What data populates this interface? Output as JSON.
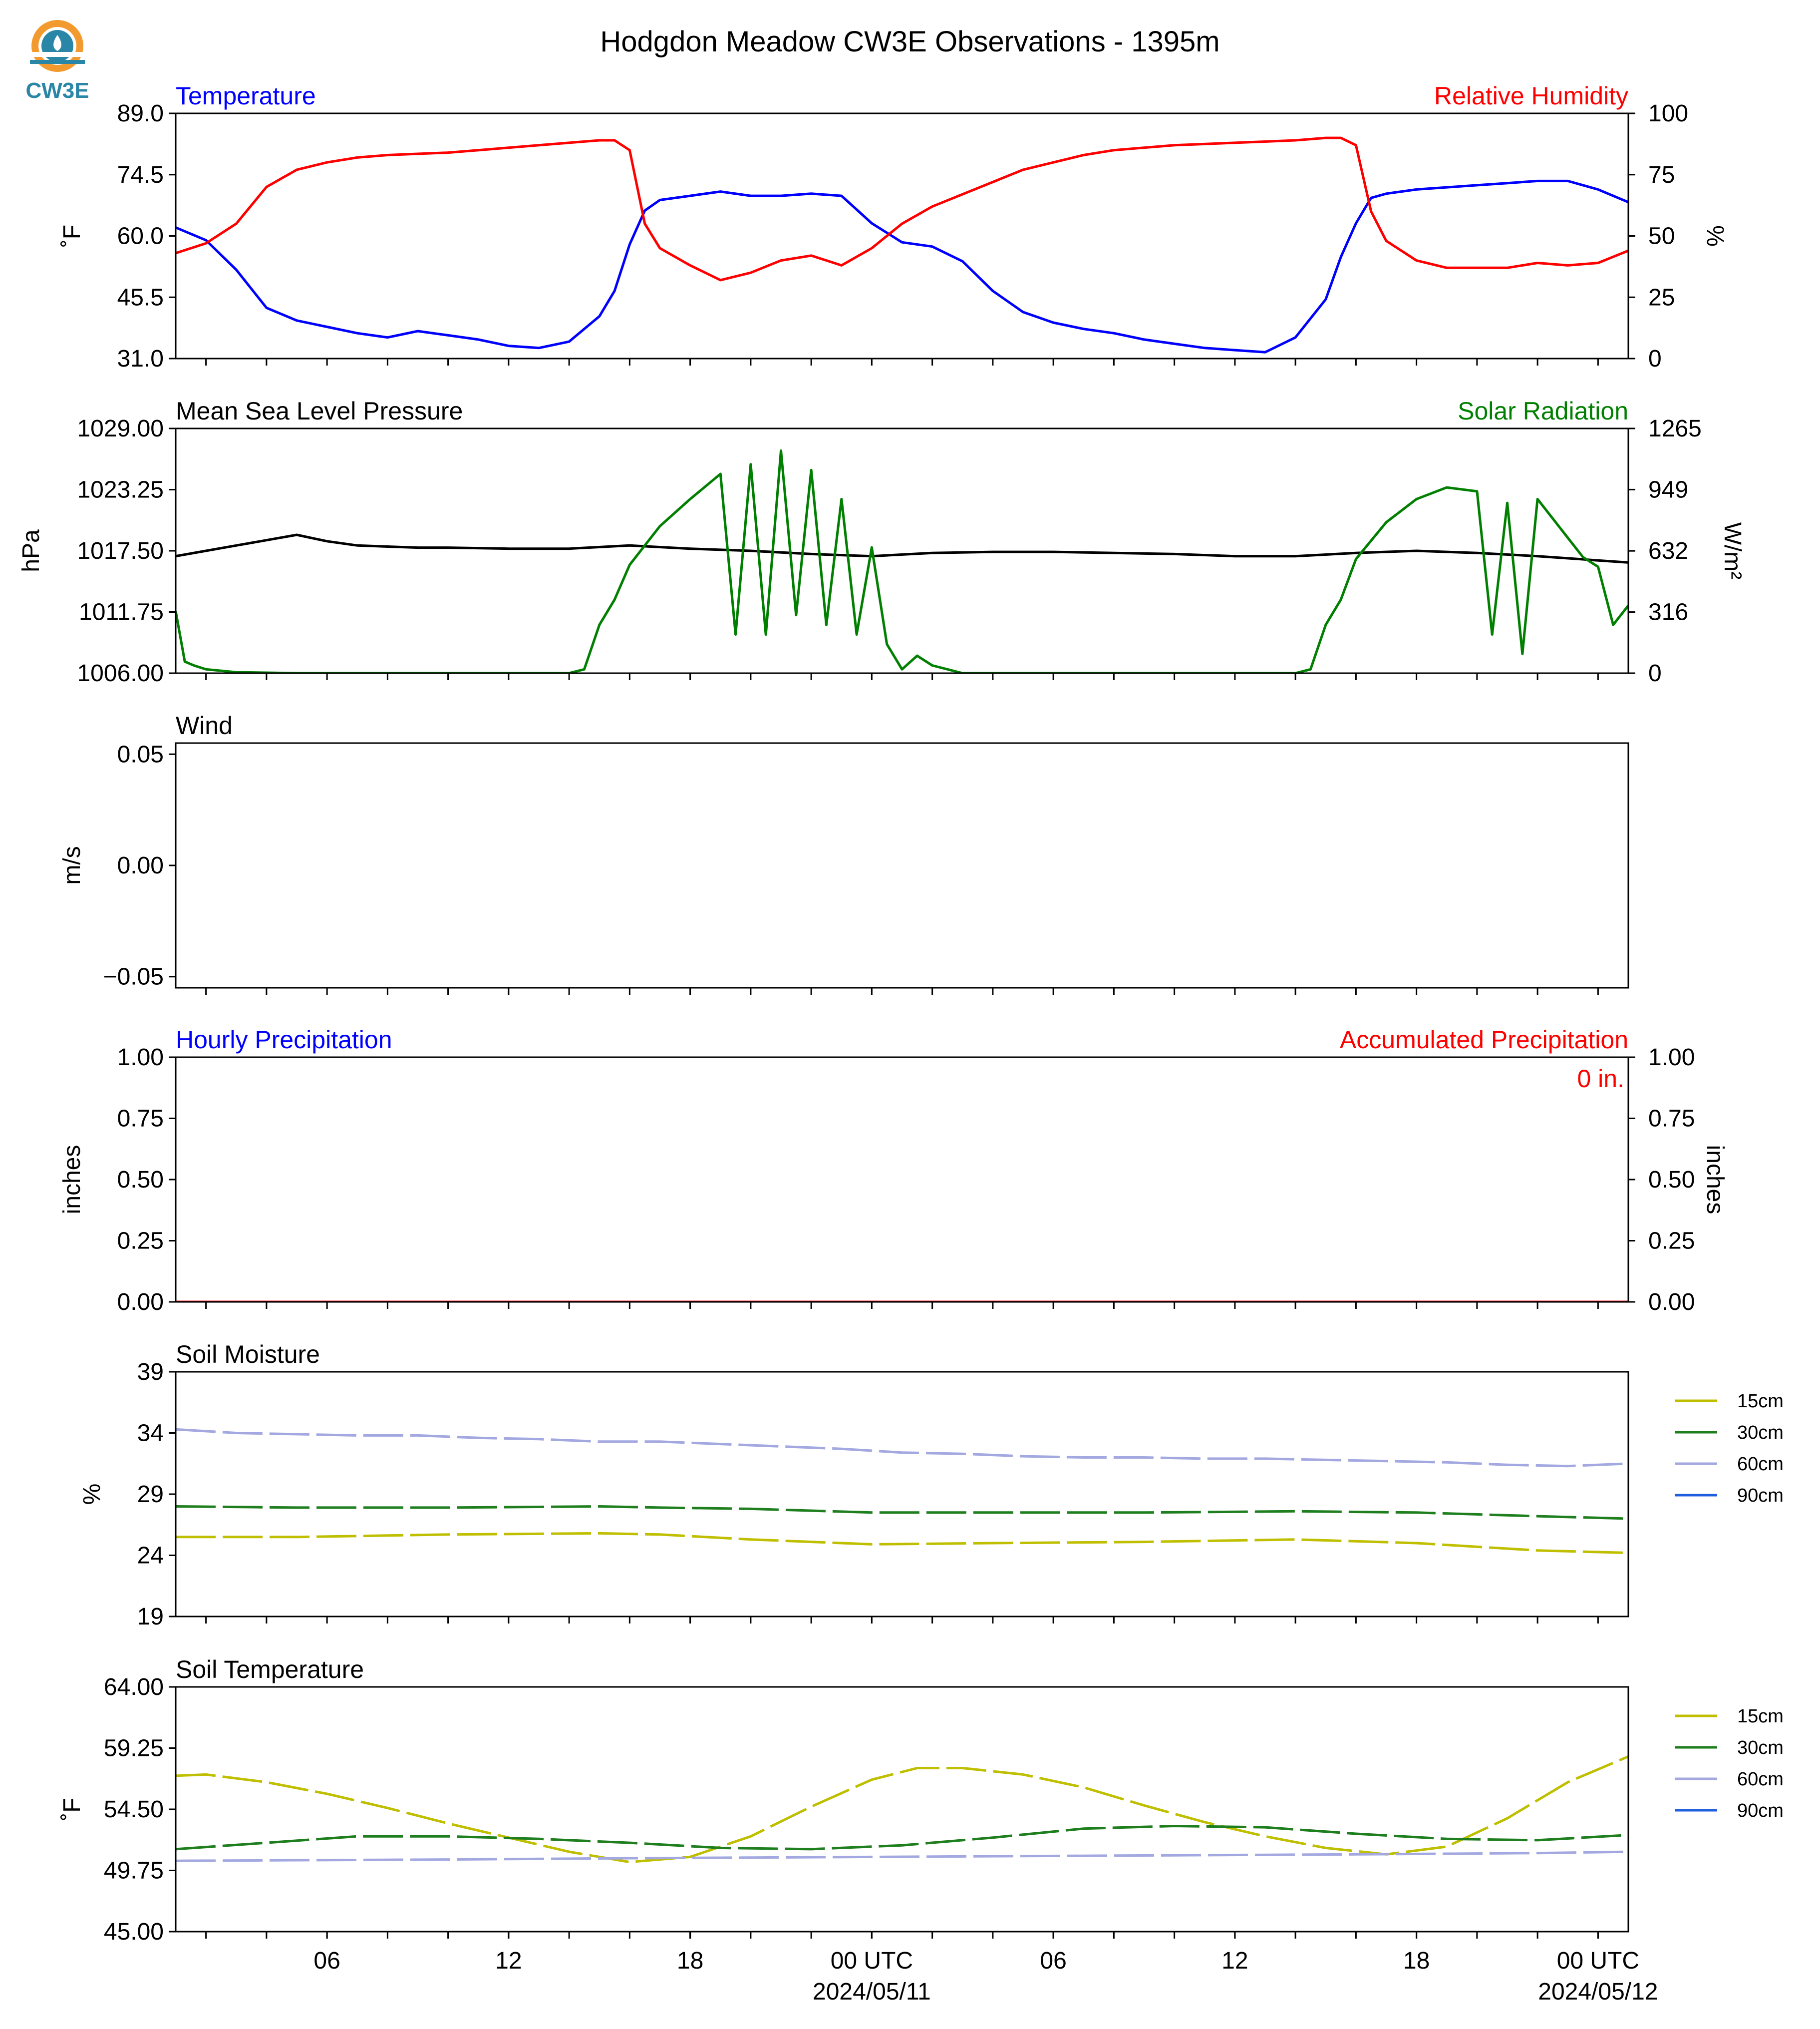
{
  "title": "Hodgdon Meadow CW3E Observations - 1395m",
  "logo": {
    "text": "CW3E",
    "icon": "cw3e-logo-icon"
  },
  "colors": {
    "blue": "#0000ff",
    "red": "#ff0000",
    "green": "#007f00",
    "black": "#000000",
    "s15": "#bfbf00",
    "s30": "#1f7f1f",
    "s60": "#a3a8e0",
    "s90": "#1f5fdf"
  },
  "x_axis": {
    "ticks": [
      {
        "h": 6,
        "label": "06",
        "sub": ""
      },
      {
        "h": 12,
        "label": "12",
        "sub": ""
      },
      {
        "h": 18,
        "label": "18",
        "sub": ""
      },
      {
        "h": 24,
        "label": "00 UTC",
        "sub": "2024/05/11"
      },
      {
        "h": 30,
        "label": "06",
        "sub": ""
      },
      {
        "h": 36,
        "label": "12",
        "sub": ""
      },
      {
        "h": 42,
        "label": "18",
        "sub": ""
      },
      {
        "h": 48,
        "label": "00 UTC",
        "sub": "2024/05/12"
      }
    ],
    "range_hours": [
      1,
      49
    ]
  },
  "chart_data": [
    {
      "type": "line",
      "title_left": "Temperature",
      "title_right": "Relative Humidity",
      "ylabel_left": "˚F",
      "ylabel_right": "%",
      "ylim_left": [
        31.0,
        89.0
      ],
      "yticks_left": [
        "31.0",
        "45.5",
        "60.0",
        "74.5",
        "89.0"
      ],
      "ylim_right": [
        0,
        100
      ],
      "yticks_right": [
        "0",
        "25",
        "50",
        "75",
        "100"
      ],
      "series": [
        {
          "name": "Temperature",
          "axis": "left",
          "color": "blue",
          "x": [
            1,
            2,
            3,
            4,
            5,
            6,
            7,
            8,
            9,
            10,
            11,
            12,
            13,
            14,
            15,
            15.5,
            16,
            16.5,
            17,
            18,
            19,
            20,
            21,
            22,
            23,
            24,
            25,
            26,
            27,
            28,
            29,
            30,
            31,
            32,
            33,
            34,
            35,
            36,
            37,
            38,
            39,
            39.5,
            40,
            40.5,
            41,
            42,
            43,
            44,
            45,
            46,
            47,
            48,
            49
          ],
          "y": [
            62,
            59,
            52,
            43,
            40,
            38.5,
            37,
            36,
            37.5,
            36.5,
            35.5,
            34,
            33.5,
            35,
            41,
            47,
            58,
            66,
            68.5,
            69.5,
            70.5,
            69.5,
            69.5,
            70,
            69.5,
            63,
            58.5,
            57.5,
            54,
            47,
            42,
            39.5,
            38,
            37,
            35.5,
            34.5,
            33.5,
            33,
            32.5,
            36,
            45,
            55,
            63,
            69,
            70,
            71,
            71.5,
            72,
            72.5,
            73,
            73,
            71,
            68
          ]
        },
        {
          "name": "Relative Humidity",
          "axis": "right",
          "color": "red",
          "x": [
            1,
            2,
            3,
            4,
            5,
            6,
            7,
            8,
            9,
            10,
            11,
            12,
            13,
            14,
            15,
            15.5,
            16,
            16.5,
            17,
            18,
            19,
            20,
            21,
            22,
            23,
            24,
            25,
            26,
            27,
            28,
            29,
            30,
            31,
            32,
            33,
            34,
            35,
            36,
            37,
            38,
            39,
            39.5,
            40,
            40.5,
            41,
            42,
            43,
            44,
            45,
            46,
            47,
            48,
            49
          ],
          "y": [
            43,
            47,
            55,
            70,
            77,
            80,
            82,
            83,
            83.5,
            84,
            85,
            86,
            87,
            88,
            89,
            89,
            85,
            55,
            45,
            38,
            32,
            35,
            40,
            42,
            38,
            45,
            55,
            62,
            67,
            72,
            77,
            80,
            83,
            85,
            86,
            87,
            87.5,
            88,
            88.5,
            89,
            90,
            90,
            87,
            60,
            48,
            40,
            37,
            37,
            37,
            39,
            38,
            39,
            44
          ]
        }
      ]
    },
    {
      "type": "line",
      "title_left": "Mean Sea Level Pressure",
      "title_right": "Solar Radiation",
      "ylabel_left": "hPa",
      "ylabel_right": "W/m²",
      "ylim_left": [
        1006.0,
        1029.0
      ],
      "yticks_left": [
        "1006.00",
        "1011.75",
        "1017.50",
        "1023.25",
        "1029.00"
      ],
      "ylim_right": [
        0,
        1265
      ],
      "yticks_right": [
        "0",
        "316",
        "632",
        "949",
        "1265"
      ],
      "series": [
        {
          "name": "Mean Sea Level Pressure",
          "axis": "left",
          "color": "black",
          "x": [
            1,
            2,
            3,
            4,
            5,
            6,
            7,
            8,
            9,
            10,
            12,
            14,
            16,
            18,
            20,
            22,
            24,
            26,
            28,
            30,
            32,
            34,
            36,
            38,
            40,
            42,
            44,
            46,
            48,
            49
          ],
          "y": [
            1017.0,
            1017.5,
            1018.0,
            1018.5,
            1019.0,
            1018.4,
            1018.0,
            1017.9,
            1017.8,
            1017.8,
            1017.7,
            1017.7,
            1018.0,
            1017.7,
            1017.5,
            1017.2,
            1017.0,
            1017.3,
            1017.4,
            1017.4,
            1017.3,
            1017.2,
            1017.0,
            1017.0,
            1017.3,
            1017.5,
            1017.3,
            1017.0,
            1016.6,
            1016.4
          ]
        },
        {
          "name": "Solar Radiation",
          "axis": "right",
          "color": "green",
          "x": [
            1,
            1.3,
            1.6,
            2,
            3,
            5,
            8,
            11,
            14,
            14.5,
            15,
            15.5,
            16,
            17,
            18,
            19,
            19.5,
            20,
            20.5,
            21,
            21.5,
            22,
            22.5,
            23,
            23.5,
            24,
            24.5,
            25,
            25.5,
            26,
            27,
            28,
            31,
            35,
            38,
            38.5,
            39,
            39.5,
            40,
            41,
            42,
            43,
            44,
            44.5,
            45,
            45.5,
            46,
            46.5,
            47,
            47.5,
            48,
            48.5,
            49
          ],
          "y": [
            320,
            60,
            40,
            20,
            5,
            0,
            0,
            0,
            0,
            20,
            250,
            380,
            560,
            760,
            900,
            1030,
            200,
            1080,
            200,
            1150,
            300,
            1050,
            250,
            900,
            200,
            650,
            150,
            20,
            90,
            40,
            0,
            0,
            0,
            0,
            0,
            20,
            250,
            380,
            590,
            780,
            900,
            960,
            940,
            200,
            880,
            100,
            900,
            800,
            700,
            600,
            550,
            250,
            350
          ]
        }
      ]
    },
    {
      "type": "line",
      "title_left": "Wind",
      "ylabel_left": "m/s",
      "ylim_left": [
        -0.055,
        0.055
      ],
      "yticks_left": [
        "−0.05",
        "0.00",
        "0.05"
      ],
      "series": []
    },
    {
      "type": "line",
      "title_left": "Hourly Precipitation",
      "title_right": "Accumulated Precipitation",
      "ylabel_left": "inches",
      "ylabel_right": "inches",
      "ylim_left": [
        0,
        1.0
      ],
      "yticks_left": [
        "0.00",
        "0.25",
        "0.50",
        "0.75",
        "1.00"
      ],
      "ylim_right": [
        0,
        1.0
      ],
      "yticks_right": [
        "0.00",
        "0.25",
        "0.50",
        "0.75",
        "1.00"
      ],
      "annotation": "0 in.",
      "series": [
        {
          "name": "Hourly Precipitation",
          "axis": "left",
          "color": "blue",
          "x": [
            1,
            49
          ],
          "y": [
            0,
            0
          ]
        },
        {
          "name": "Accumulated Precipitation",
          "axis": "right",
          "color": "red",
          "x": [
            1,
            49
          ],
          "y": [
            0,
            0
          ]
        }
      ]
    },
    {
      "type": "line",
      "title_left": "Soil Moisture",
      "ylabel_left": "%",
      "ylim_left": [
        19,
        39
      ],
      "yticks_left": [
        "19",
        "24",
        "29",
        "34",
        "39"
      ],
      "legend": [
        "15cm",
        "30cm",
        "60cm",
        "90cm"
      ],
      "series": [
        {
          "name": "15cm",
          "color": "s15",
          "x": [
            1,
            5,
            10,
            15,
            17,
            20,
            24,
            28,
            33,
            38,
            42,
            46,
            49
          ],
          "y": [
            25.5,
            25.5,
            25.7,
            25.8,
            25.7,
            25.3,
            24.9,
            25.0,
            25.1,
            25.3,
            25.0,
            24.4,
            24.2
          ]
        },
        {
          "name": "30cm",
          "color": "s30",
          "x": [
            1,
            5,
            10,
            15,
            17,
            20,
            24,
            28,
            33,
            38,
            42,
            46,
            49
          ],
          "y": [
            28.0,
            27.9,
            27.9,
            28.0,
            27.9,
            27.8,
            27.5,
            27.5,
            27.5,
            27.6,
            27.5,
            27.2,
            27.0
          ]
        },
        {
          "name": "60cm",
          "color": "s60",
          "x": [
            1,
            3,
            5,
            7,
            9,
            11,
            13,
            15,
            17,
            19,
            21,
            23,
            25,
            27,
            29,
            31,
            33,
            35,
            37,
            39,
            41,
            43,
            45,
            47,
            49
          ],
          "y": [
            34.3,
            34.0,
            33.9,
            33.8,
            33.8,
            33.6,
            33.5,
            33.3,
            33.3,
            33.1,
            32.9,
            32.7,
            32.4,
            32.3,
            32.1,
            32.0,
            32.0,
            31.9,
            31.9,
            31.8,
            31.7,
            31.6,
            31.4,
            31.3,
            31.5
          ]
        }
      ]
    },
    {
      "type": "line",
      "title_left": "Soil Temperature",
      "ylabel_left": "˚F",
      "ylim_left": [
        45.0,
        64.0
      ],
      "yticks_left": [
        "45.00",
        "49.75",
        "54.50",
        "59.25",
        "64.00"
      ],
      "legend": [
        "15cm",
        "30cm",
        "60cm",
        "90cm"
      ],
      "series": [
        {
          "name": "15cm",
          "color": "s15",
          "x": [
            1,
            2,
            4,
            6,
            8,
            10,
            12,
            14,
            16,
            18,
            20,
            22,
            24,
            25.5,
            27,
            29,
            31,
            33,
            35,
            37,
            39,
            41,
            43,
            45,
            47,
            49
          ],
          "y": [
            57.1,
            57.2,
            56.6,
            55.7,
            54.6,
            53.4,
            52.3,
            51.2,
            50.4,
            50.8,
            52.4,
            54.7,
            56.8,
            57.7,
            57.7,
            57.2,
            56.2,
            54.8,
            53.5,
            52.4,
            51.5,
            51.0,
            51.6,
            53.8,
            56.6,
            58.6
          ]
        },
        {
          "name": "30cm",
          "color": "s30",
          "x": [
            1,
            4,
            7,
            10,
            13,
            16,
            19,
            22,
            25,
            28,
            31,
            34,
            37,
            40,
            43,
            46,
            49
          ],
          "y": [
            51.4,
            51.9,
            52.4,
            52.4,
            52.2,
            51.9,
            51.5,
            51.4,
            51.7,
            52.3,
            53.0,
            53.2,
            53.1,
            52.6,
            52.2,
            52.1,
            52.5
          ]
        },
        {
          "name": "60cm",
          "color": "s60",
          "x": [
            1,
            10,
            16,
            24,
            32,
            40,
            46,
            49
          ],
          "y": [
            50.5,
            50.6,
            50.7,
            50.8,
            50.9,
            51.0,
            51.1,
            51.2
          ]
        }
      ]
    }
  ]
}
